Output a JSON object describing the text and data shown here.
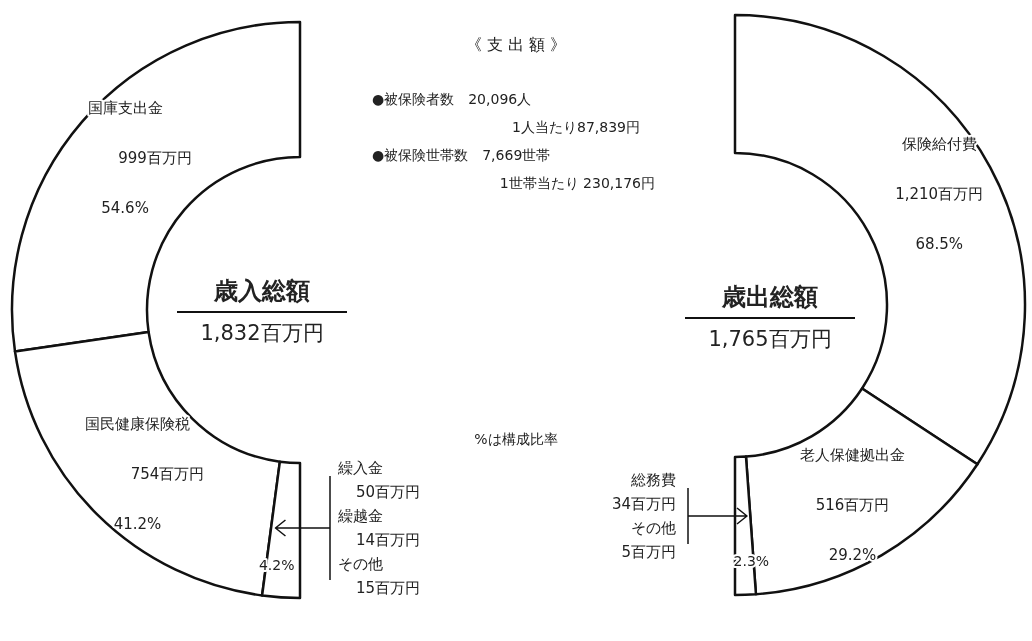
{
  "chart_data": [
    {
      "type": "donut",
      "title": "歳入総額",
      "subtitle": "1,832百万円",
      "categories": [
        "国庫支出金",
        "国民健康保険税",
        null
      ],
      "values": [
        54.6,
        41.2,
        4.2
      ],
      "colors": [
        "#ffffff",
        "#ffffff",
        "#ffffff"
      ],
      "value_labels": [
        "54.6%",
        "41.2%",
        "4.2%"
      ],
      "annotations": [
        "999百万円",
        "754百万円",
        "繰入金",
        "50百万円",
        "繰越金",
        "14百万円",
        "その他",
        "15百万円"
      ]
    },
    {
      "type": "donut",
      "title": "歳出総額",
      "subtitle": "1,765百万円",
      "categories": [
        "保険給付費",
        "老人保健拠出金",
        null
      ],
      "values": [
        68.5,
        29.2,
        2.3
      ],
      "colors": [
        "#ffffff",
        "#ffffff",
        "#ffffff"
      ],
      "value_labels": [
        "68.5%",
        "29.2%",
        "2.3%"
      ],
      "annotations": [
        "1,210百万円",
        "516百万円",
        "総務費",
        "34百万円",
        "その他",
        "5百万円"
      ]
    },
    {
      "type": "other",
      "title": "《 支 出 額 》",
      "annotations": [
        "●被保険者数　20,096人",
        "1人当たり87,839円",
        "●被保険世帯数　7,669世帯",
        "1世帯当たり 230,176円",
        "%は構成比率"
      ]
    }
  ]
}
